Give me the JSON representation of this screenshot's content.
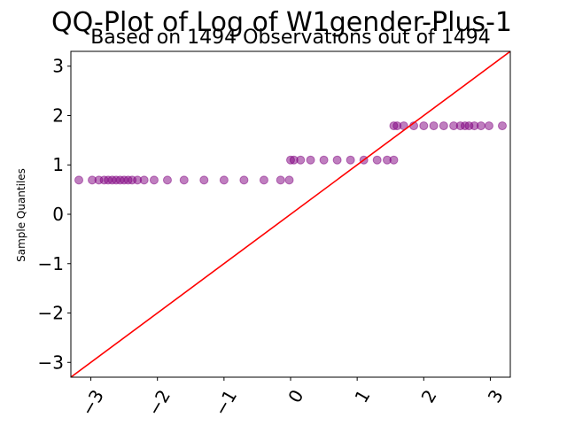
{
  "chart_data": {
    "type": "scatter",
    "title": "QQ-Plot of Log of W1gender-Plus-1",
    "subtitle": "Based on 1494 Observations out of 1494",
    "xlabel": "",
    "ylabel": "Sample Quantiles",
    "xlim": [
      -3.3,
      3.3
    ],
    "ylim": [
      -3.3,
      3.3
    ],
    "xticks": [
      -3,
      -2,
      -1,
      0,
      1,
      2,
      3
    ],
    "xtick_labels": [
      "−3",
      "−2",
      "−1",
      "0",
      "1",
      "2",
      "3"
    ],
    "yticks": [
      -3,
      -2,
      -1,
      0,
      1,
      2,
      3
    ],
    "ytick_labels": [
      "−3",
      "−2",
      "−1",
      "0",
      "1",
      "2",
      "3"
    ],
    "grid": false,
    "point_color": "#800080",
    "line_color": "#ff0000",
    "reference_line": {
      "slope": 1,
      "intercept": 0
    },
    "series": [
      {
        "y": 0.693,
        "x": [
          -3.18,
          -2.98,
          -2.88,
          -2.8,
          -2.74,
          -2.68,
          -2.62,
          -2.56,
          -2.5,
          -2.44,
          -2.38,
          -2.3,
          -2.2,
          -2.05,
          -1.85,
          -1.6,
          -1.3,
          -1.0,
          -0.7,
          -0.4,
          -0.15,
          -0.02
        ]
      },
      {
        "y": 1.099,
        "x": [
          0.0,
          0.05,
          0.15,
          0.3,
          0.5,
          0.7,
          0.9,
          1.1,
          1.3,
          1.45,
          1.55
        ]
      },
      {
        "y": 1.792,
        "x": [
          1.55,
          1.6,
          1.7,
          1.85,
          2.0,
          2.15,
          2.3,
          2.45,
          2.55,
          2.62,
          2.68,
          2.76,
          2.86,
          2.98,
          3.18
        ]
      }
    ]
  }
}
